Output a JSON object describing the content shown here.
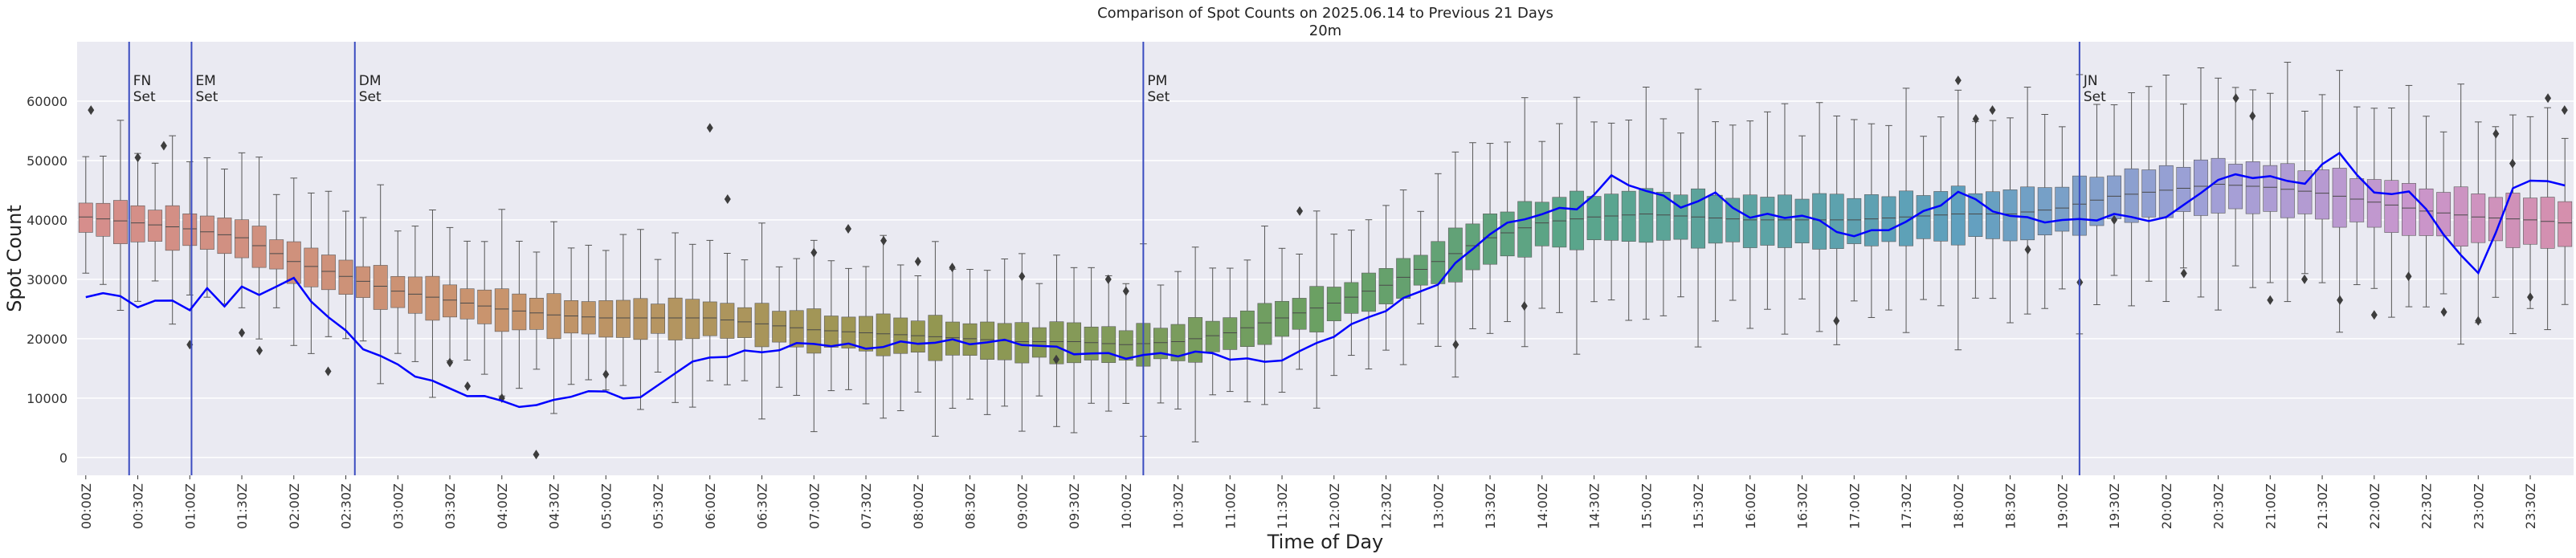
{
  "chart_data": {
    "type": "box",
    "title": "Comparison of Spot Counts on 2025.06.14 to Previous 21 Days",
    "subtitle": "20m",
    "xlabel": "Time of Day",
    "ylabel": "Spot Count",
    "ylim": [
      -3000,
      70000
    ],
    "yticks": [
      0,
      10000,
      20000,
      30000,
      40000,
      50000,
      60000
    ],
    "ytick_labels": [
      "0",
      "10000",
      "20000",
      "30000",
      "40000",
      "50000",
      "60000"
    ],
    "xtick_labels": [
      "00:00Z",
      "00:30Z",
      "01:00Z",
      "01:30Z",
      "02:00Z",
      "02:30Z",
      "03:00Z",
      "03:30Z",
      "04:00Z",
      "04:30Z",
      "05:00Z",
      "05:30Z",
      "06:00Z",
      "06:30Z",
      "07:00Z",
      "07:30Z",
      "08:00Z",
      "08:30Z",
      "09:00Z",
      "09:30Z",
      "10:00Z",
      "10:30Z",
      "11:00Z",
      "11:30Z",
      "12:00Z",
      "12:30Z",
      "13:00Z",
      "13:30Z",
      "14:00Z",
      "14:30Z",
      "15:00Z",
      "15:30Z",
      "16:00Z",
      "16:30Z",
      "17:00Z",
      "17:30Z",
      "18:00Z",
      "18:30Z",
      "19:00Z",
      "19:30Z",
      "20:00Z",
      "20:30Z",
      "21:00Z",
      "21:30Z",
      "22:00Z",
      "22:30Z",
      "23:00Z",
      "23:30Z"
    ],
    "interval_minutes": 10,
    "grid": true,
    "median_knots": [
      [
        0,
        40500
      ],
      [
        0.5,
        39500
      ],
      [
        1,
        38500
      ],
      [
        1.5,
        37000
      ],
      [
        2,
        33000
      ],
      [
        2.5,
        30500
      ],
      [
        3,
        28000
      ],
      [
        3.5,
        26500
      ],
      [
        4,
        25000
      ],
      [
        4.5,
        24000
      ],
      [
        5,
        23500
      ],
      [
        5.5,
        23500
      ],
      [
        6,
        23500
      ],
      [
        6.5,
        22500
      ],
      [
        7,
        21500
      ],
      [
        7.5,
        21000
      ],
      [
        8,
        20500
      ],
      [
        8.5,
        20000
      ],
      [
        9,
        19500
      ],
      [
        9.5,
        19500
      ],
      [
        10,
        19000
      ],
      [
        10.5,
        19500
      ],
      [
        11,
        21000
      ],
      [
        11.5,
        23500
      ],
      [
        12,
        26000
      ],
      [
        12.5,
        29000
      ],
      [
        13,
        33000
      ],
      [
        13.5,
        37000
      ],
      [
        14,
        39500
      ],
      [
        14.5,
        40500
      ],
      [
        15,
        41000
      ],
      [
        15.5,
        40500
      ],
      [
        16,
        40000
      ],
      [
        16.5,
        40000
      ],
      [
        17,
        40000
      ],
      [
        17.5,
        40500
      ],
      [
        18,
        41000
      ],
      [
        18.5,
        41000
      ],
      [
        19,
        42000
      ],
      [
        19.5,
        44000
      ],
      [
        20,
        45000
      ],
      [
        20.5,
        46000
      ],
      [
        21,
        45500
      ],
      [
        21.5,
        44500
      ],
      [
        22,
        43000
      ],
      [
        22.5,
        41500
      ],
      [
        23,
        40500
      ],
      [
        23.5,
        40000
      ],
      [
        23.83,
        39500
      ]
    ],
    "current_day_knots": [
      [
        0,
        27000
      ],
      [
        0.25,
        29000
      ],
      [
        0.5,
        25000
      ],
      [
        0.75,
        27500
      ],
      [
        1,
        24000
      ],
      [
        1.17,
        28500
      ],
      [
        1.33,
        25000
      ],
      [
        1.5,
        28000
      ],
      [
        1.67,
        27500
      ],
      [
        2,
        30000
      ],
      [
        2.33,
        24000
      ],
      [
        2.67,
        19000
      ],
      [
        3,
        15500
      ],
      [
        3.5,
        11000
      ],
      [
        4,
        9000
      ],
      [
        4.33,
        8500
      ],
      [
        4.67,
        11000
      ],
      [
        5,
        11500
      ],
      [
        5.33,
        10000
      ],
      [
        5.67,
        14500
      ],
      [
        6,
        16500
      ],
      [
        6.5,
        17500
      ],
      [
        7,
        19500
      ],
      [
        7.5,
        19000
      ],
      [
        8,
        19500
      ],
      [
        8.5,
        19000
      ],
      [
        9,
        19000
      ],
      [
        9.5,
        18000
      ],
      [
        10,
        17500
      ],
      [
        10.33,
        17500
      ],
      [
        10.67,
        17500
      ],
      [
        11,
        16500
      ],
      [
        11.33,
        15500
      ],
      [
        11.67,
        17500
      ],
      [
        12,
        21000
      ],
      [
        12.5,
        25500
      ],
      [
        13,
        29500
      ],
      [
        13.5,
        37500
      ],
      [
        14,
        41000
      ],
      [
        14.33,
        42000
      ],
      [
        14.67,
        47500
      ],
      [
        15,
        45500
      ],
      [
        15.33,
        42500
      ],
      [
        15.67,
        44000
      ],
      [
        16,
        40000
      ],
      [
        16.5,
        40500
      ],
      [
        17,
        37500
      ],
      [
        17.5,
        40000
      ],
      [
        18,
        44500
      ],
      [
        18.5,
        40000
      ],
      [
        19,
        39500
      ],
      [
        19.5,
        41000
      ],
      [
        20,
        40500
      ],
      [
        20.33,
        45000
      ],
      [
        20.67,
        47500
      ],
      [
        21,
        46500
      ],
      [
        21.33,
        46000
      ],
      [
        21.67,
        51500
      ],
      [
        22,
        44500
      ],
      [
        22.33,
        45500
      ],
      [
        22.67,
        38000
      ],
      [
        23,
        30500
      ],
      [
        23.33,
        45000
      ],
      [
        23.67,
        46500
      ],
      [
        23.83,
        45500
      ]
    ],
    "outliers": [
      [
        0.05,
        58500
      ],
      [
        0.5,
        50500
      ],
      [
        0.75,
        52500
      ],
      [
        1,
        19000
      ],
      [
        1.5,
        21000
      ],
      [
        1.67,
        18000
      ],
      [
        2.33,
        14500
      ],
      [
        3.5,
        16000
      ],
      [
        3.67,
        12000
      ],
      [
        4,
        10000
      ],
      [
        4.33,
        500
      ],
      [
        5,
        14000
      ],
      [
        6,
        55500
      ],
      [
        6.17,
        43500
      ],
      [
        7,
        34500
      ],
      [
        7.33,
        38500
      ],
      [
        7.67,
        36500
      ],
      [
        8,
        33000
      ],
      [
        8.33,
        32000
      ],
      [
        9,
        30500
      ],
      [
        9.33,
        16500
      ],
      [
        9.83,
        30000
      ],
      [
        10,
        28000
      ],
      [
        11.67,
        41500
      ],
      [
        13.17,
        19000
      ],
      [
        13.83,
        25500
      ],
      [
        16.83,
        23000
      ],
      [
        18,
        63500
      ],
      [
        18.17,
        57000
      ],
      [
        18.33,
        58500
      ],
      [
        18.67,
        35000
      ],
      [
        19.17,
        29500
      ],
      [
        19.5,
        40000
      ],
      [
        20.17,
        31000
      ],
      [
        20.67,
        60500
      ],
      [
        20.83,
        57500
      ],
      [
        21,
        26500
      ],
      [
        21.33,
        30000
      ],
      [
        21.67,
        26500
      ],
      [
        22,
        24000
      ],
      [
        22.33,
        30500
      ],
      [
        22.67,
        24500
      ],
      [
        23,
        23000
      ],
      [
        23.17,
        54500
      ],
      [
        23.33,
        49500
      ],
      [
        23.5,
        27000
      ],
      [
        23.67,
        60500
      ],
      [
        23.83,
        58500
      ]
    ],
    "events": [
      {
        "label": "FN\nSet",
        "time_hours": 0.5
      },
      {
        "label": "EM\nSet",
        "time_hours": 1.1
      },
      {
        "label": "DM\nSet",
        "time_hours": 2.67
      },
      {
        "label": "PM\nSet",
        "time_hours": 10.25
      },
      {
        "label": "JN\nSet",
        "time_hours": 19.25
      }
    ],
    "colors": {
      "background": "#eaeaf2",
      "grid": "#ffffff",
      "current_line": "#0000ff",
      "event_line": "#3b4cc0",
      "whisker": "#555555",
      "outlier": "#3d3d3d"
    }
  }
}
